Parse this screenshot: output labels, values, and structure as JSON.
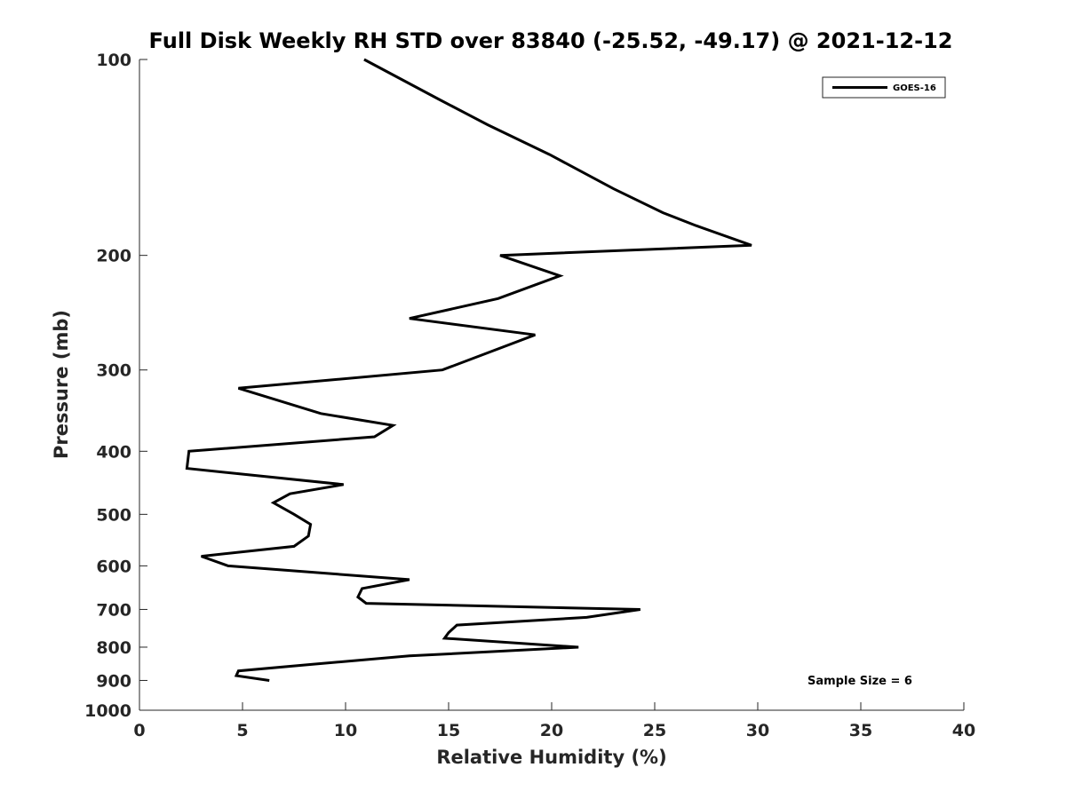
{
  "chart_data": {
    "type": "line",
    "title": "Full Disk Weekly RH STD over 83840 (-25.52, -49.17) @ 2021-12-12",
    "xlabel": "Relative Humidity (%)",
    "ylabel": "Pressure (mb)",
    "xlim": [
      0,
      40
    ],
    "ylim": [
      100,
      1000
    ],
    "y_scale": "log",
    "y_reversed": true,
    "xticks": [
      0,
      5,
      10,
      15,
      20,
      25,
      30,
      35,
      40
    ],
    "xtick_labels": [
      "0",
      "5",
      "10",
      "15",
      "20",
      "25",
      "30",
      "35",
      "40"
    ],
    "yticks": [
      100,
      200,
      300,
      400,
      500,
      600,
      700,
      800,
      900,
      1000
    ],
    "ytick_labels": [
      "100",
      "200",
      "300",
      "400",
      "500",
      "600",
      "700",
      "800",
      "900",
      "1000"
    ],
    "grid": false,
    "legend_position": "top-right",
    "annotation": "Sample Size = 6",
    "series": [
      {
        "name": "GOES-16",
        "color": "#000000",
        "points": [
          [
            10.9,
            100
          ],
          [
            14.5,
            115
          ],
          [
            16.9,
            126
          ],
          [
            19.9,
            140
          ],
          [
            23.0,
            158
          ],
          [
            25.4,
            172
          ],
          [
            27.0,
            180
          ],
          [
            29.7,
            193
          ],
          [
            17.5,
            200
          ],
          [
            20.4,
            215
          ],
          [
            17.4,
            233
          ],
          [
            13.1,
            250
          ],
          [
            19.2,
            265
          ],
          [
            14.7,
            300
          ],
          [
            4.8,
            320
          ],
          [
            8.8,
            350
          ],
          [
            12.3,
            365
          ],
          [
            11.4,
            380
          ],
          [
            2.4,
            400
          ],
          [
            2.3,
            425
          ],
          [
            9.9,
            450
          ],
          [
            7.3,
            465
          ],
          [
            6.5,
            480
          ],
          [
            7.5,
            500
          ],
          [
            8.3,
            518
          ],
          [
            8.2,
            540
          ],
          [
            7.5,
            560
          ],
          [
            3.0,
            580
          ],
          [
            4.3,
            600
          ],
          [
            13.1,
            630
          ],
          [
            10.8,
            650
          ],
          [
            10.6,
            670
          ],
          [
            11.0,
            685
          ],
          [
            24.3,
            700
          ],
          [
            21.7,
            720
          ],
          [
            15.4,
            740
          ],
          [
            15.0,
            760
          ],
          [
            14.8,
            775
          ],
          [
            21.3,
            800
          ],
          [
            13.1,
            825
          ],
          [
            8.4,
            850
          ],
          [
            4.8,
            870
          ],
          [
            4.7,
            885
          ],
          [
            6.3,
            900
          ]
        ]
      }
    ]
  }
}
